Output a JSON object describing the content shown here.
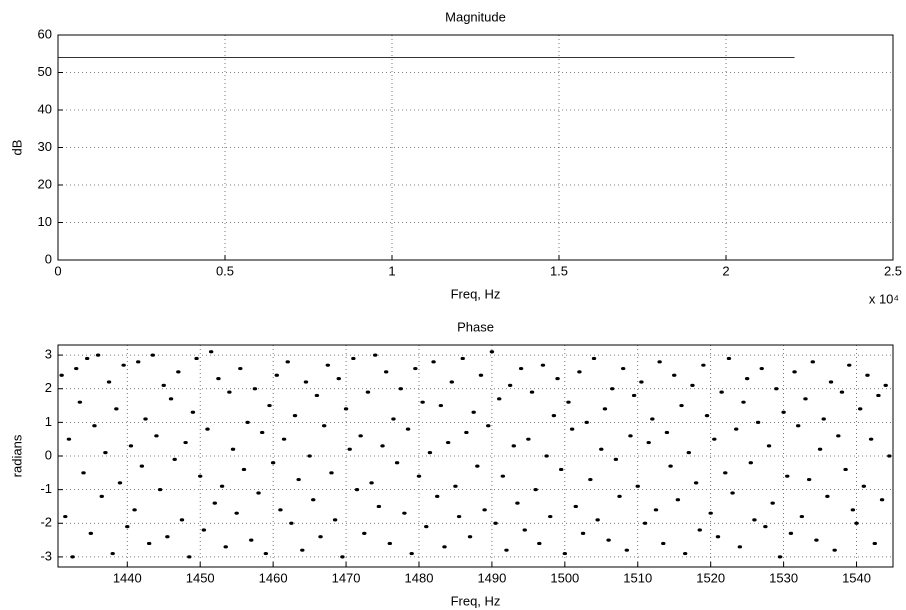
{
  "chart_data": [
    {
      "type": "line",
      "title": "Magnitude",
      "xlabel": "Freq, Hz",
      "ylabel": "dB",
      "x_exponent": "x 10⁴",
      "x": [
        0,
        22050
      ],
      "values": [
        54,
        54
      ],
      "color": "#333333",
      "xlim": [
        0,
        25000
      ],
      "ylim": [
        0,
        60
      ],
      "xticks": [
        0,
        {
          "value": 5000,
          "label": "0.5"
        },
        {
          "value": 10000,
          "label": "1"
        },
        {
          "value": 15000,
          "label": "1.5"
        },
        {
          "value": 20000,
          "label": "2"
        },
        {
          "value": 25000,
          "label": "2.5"
        }
      ],
      "yticks": [
        0,
        10,
        20,
        30,
        40,
        50,
        60
      ],
      "grid": true
    },
    {
      "type": "scatter",
      "title": "Phase",
      "xlabel": "Freq, Hz",
      "ylabel": "radians",
      "color": "#000000",
      "x": [
        1431,
        1431.5,
        1432,
        1432.5,
        1433,
        1433.5,
        1434,
        1434.5,
        1435,
        1435.5,
        1436,
        1436.5,
        1437,
        1437.5,
        1438,
        1438.5,
        1439,
        1439.5,
        1440,
        1440.5,
        1441,
        1441.5,
        1442,
        1442.5,
        1443,
        1443.5,
        1444,
        1444.5,
        1445,
        1445.5,
        1446,
        1446.5,
        1447,
        1447.5,
        1448,
        1448.5,
        1449,
        1449.5,
        1450,
        1450.5,
        1451,
        1451.5,
        1452,
        1452.5,
        1453,
        1453.5,
        1454,
        1454.5,
        1455,
        1455.5,
        1456,
        1456.5,
        1457,
        1457.5,
        1458,
        1458.5,
        1459,
        1459.5,
        1460,
        1460.5,
        1461,
        1461.5,
        1462,
        1462.5,
        1463,
        1463.5,
        1464,
        1464.5,
        1465,
        1465.5,
        1466,
        1466.5,
        1467,
        1467.5,
        1468,
        1468.5,
        1469,
        1469.5,
        1470,
        1470.5,
        1471,
        1471.5,
        1472,
        1472.5,
        1473,
        1473.5,
        1474,
        1474.5,
        1475,
        1475.5,
        1476,
        1476.5,
        1477,
        1477.5,
        1478,
        1478.5,
        1479,
        1479.5,
        1480,
        1480.5,
        1481,
        1481.5,
        1482,
        1482.5,
        1483,
        1483.5,
        1484,
        1484.5,
        1485,
        1485.5,
        1486,
        1486.5,
        1487,
        1487.5,
        1488,
        1488.5,
        1489,
        1489.5,
        1490,
        1490.5,
        1491,
        1491.5,
        1492,
        1492.5,
        1493,
        1493.5,
        1494,
        1494.5,
        1495,
        1495.5,
        1496,
        1496.5,
        1497,
        1497.5,
        1498,
        1498.5,
        1499,
        1499.5,
        1500,
        1500.5,
        1501,
        1501.5,
        1502,
        1502.5,
        1503,
        1503.5,
        1504,
        1504.5,
        1505,
        1505.5,
        1506,
        1506.5,
        1507,
        1507.5,
        1508,
        1508.5,
        1509,
        1509.5,
        1510,
        1510.5,
        1511,
        1511.5,
        1512,
        1512.5,
        1513,
        1513.5,
        1514,
        1514.5,
        1515,
        1515.5,
        1516,
        1516.5,
        1517,
        1517.5,
        1518,
        1518.5,
        1519,
        1519.5,
        1520,
        1520.5,
        1521,
        1521.5,
        1522,
        1522.5,
        1523,
        1523.5,
        1524,
        1524.5,
        1525,
        1525.5,
        1526,
        1526.5,
        1527,
        1527.5,
        1528,
        1528.5,
        1529,
        1529.5,
        1530,
        1530.5,
        1531,
        1531.5,
        1532,
        1532.5,
        1533,
        1533.5,
        1534,
        1534.5,
        1535,
        1535.5,
        1536,
        1536.5,
        1537,
        1537.5,
        1538,
        1538.5,
        1539,
        1539.5,
        1540,
        1540.5,
        1541,
        1541.5,
        1542,
        1542.5,
        1543,
        1543.5,
        1544,
        1544.5
      ],
      "values": [
        2.4,
        -1.8,
        0.5,
        -3.0,
        2.6,
        1.6,
        -0.5,
        2.9,
        -2.3,
        0.9,
        3.0,
        -1.2,
        0.1,
        2.2,
        -2.9,
        1.4,
        -0.8,
        2.7,
        -2.1,
        0.3,
        -1.6,
        2.8,
        -0.3,
        1.1,
        -2.6,
        3.0,
        0.6,
        -1.0,
        2.1,
        -2.4,
        1.7,
        -0.1,
        2.5,
        -1.9,
        0.4,
        -3.0,
        1.3,
        2.9,
        -0.6,
        -2.2,
        0.8,
        3.1,
        -1.4,
        2.3,
        -0.9,
        -2.7,
        1.9,
        0.2,
        -1.7,
        2.6,
        -0.4,
        1.0,
        -2.5,
        2.0,
        -1.1,
        0.7,
        -2.9,
        1.5,
        -0.2,
        2.4,
        -1.6,
        0.5,
        2.8,
        -2.0,
        1.2,
        -0.7,
        -2.8,
        2.2,
        0.0,
        -1.3,
        1.8,
        -2.4,
        0.9,
        2.7,
        -0.5,
        -1.9,
        2.3,
        -3.0,
        1.4,
        0.2,
        2.9,
        -1.0,
        0.6,
        -2.3,
        1.9,
        -0.8,
        3.0,
        -1.5,
        0.3,
        2.5,
        -2.6,
        1.1,
        -0.2,
        2.0,
        -1.7,
        0.8,
        -2.9,
        2.6,
        -0.6,
        1.6,
        -2.1,
        0.1,
        2.8,
        -1.2,
        1.5,
        -2.7,
        0.4,
        2.2,
        -0.9,
        -1.8,
        2.9,
        0.7,
        -2.4,
        1.3,
        -0.3,
        2.4,
        -1.6,
        0.9,
        3.1,
        -2.0,
        1.7,
        -0.6,
        -2.8,
        2.1,
        0.3,
        -1.4,
        2.6,
        -2.2,
        0.5,
        1.9,
        -1.0,
        -2.6,
        2.7,
        0.0,
        -1.8,
        1.2,
        2.3,
        -0.4,
        -2.9,
        1.6,
        0.8,
        -1.5,
        2.5,
        -2.3,
        1.0,
        -0.7,
        2.9,
        -1.9,
        0.2,
        1.4,
        -2.5,
        2.0,
        -0.1,
        -1.2,
        2.6,
        -2.8,
        0.6,
        1.8,
        -0.9,
        2.2,
        -2.0,
        0.4,
        1.1,
        -1.6,
        2.8,
        -2.6,
        0.7,
        -0.3,
        2.4,
        -1.3,
        1.5,
        -2.9,
        0.1,
        2.1,
        -0.8,
        -2.2,
        2.7,
        1.2,
        -1.7,
        0.5,
        -2.4,
        1.9,
        -0.5,
        2.9,
        -1.1,
        0.8,
        -2.7,
        1.6,
        2.3,
        -0.2,
        -1.9,
        1.0,
        2.6,
        -2.1,
        0.3,
        -1.4,
        2.0,
        -3.0,
        1.3,
        -0.6,
        -2.3,
        2.5,
        0.9,
        -1.8,
        1.7,
        -0.7,
        2.8,
        -2.5,
        0.2,
        1.1,
        -1.2,
        2.2,
        -2.8,
        0.6,
        1.9,
        -0.4,
        2.7,
        -1.6,
        -2.0,
        1.4,
        -0.9,
        2.4,
        0.5,
        -2.6,
        1.8,
        -1.3,
        2.1,
        0.0
      ],
      "xlim": [
        1430.5,
        1545
      ],
      "ylim": [
        -3.3,
        3.3
      ],
      "xticks": [
        1440,
        1450,
        1460,
        1470,
        1480,
        1490,
        1500,
        1510,
        1520,
        1530,
        1540
      ],
      "yticks": [
        -3,
        -2,
        -1,
        0,
        1,
        2,
        3
      ],
      "grid": true
    }
  ]
}
